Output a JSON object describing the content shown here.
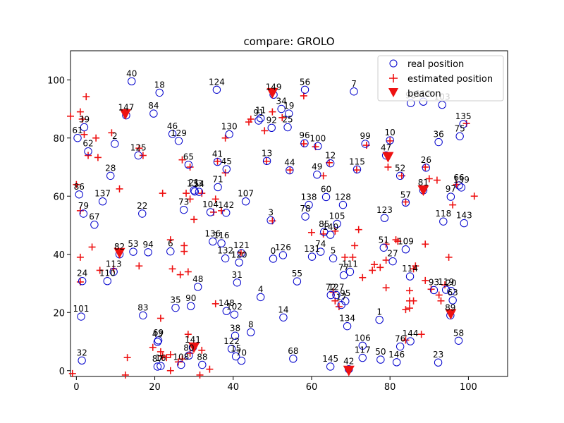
{
  "chart_data": {
    "type": "scatter",
    "title": "compare: GROLO",
    "xlabel": "",
    "ylabel": "",
    "xlim": [
      -1.5,
      110
    ],
    "ylim": [
      -2,
      110
    ],
    "xticks": [
      "0",
      "20",
      "40",
      "60",
      "80",
      "100"
    ],
    "xtick_values": [
      0,
      20,
      40,
      60,
      80,
      100
    ],
    "yticks": [
      "0",
      "20",
      "40",
      "60",
      "80",
      "100"
    ],
    "ytick_values": [
      0,
      20,
      40,
      60,
      80,
      100
    ],
    "grid": false,
    "legend_position": "top-right",
    "legend": [
      "real position",
      "estimated position",
      "beacon"
    ],
    "colors": {
      "real": "#0000cc",
      "estimated": "#ee1111",
      "beacon": "#ee1111"
    },
    "real_positions": [
      {
        "id": "0",
        "x": 50.2,
        "y": 38.5
      },
      {
        "id": "1",
        "x": 77.3,
        "y": 17.5
      },
      {
        "id": "2",
        "x": 9.8,
        "y": 78.0
      },
      {
        "id": "3",
        "x": 49.6,
        "y": 51.7
      },
      {
        "id": "4",
        "x": 47.0,
        "y": 25.3
      },
      {
        "id": "5",
        "x": 65.5,
        "y": 38.6
      },
      {
        "id": "6",
        "x": 24.0,
        "y": 41.0
      },
      {
        "id": "7",
        "x": 70.8,
        "y": 96.0
      },
      {
        "id": "8",
        "x": 44.5,
        "y": 13.2
      },
      {
        "id": "10",
        "x": 80.0,
        "y": 79.2
      },
      {
        "id": "11",
        "x": 47.0,
        "y": 86.8
      },
      {
        "id": "12",
        "x": 64.8,
        "y": 71.3
      },
      {
        "id": "13",
        "x": 48.6,
        "y": 72.1
      },
      {
        "id": "14",
        "x": 52.8,
        "y": 18.3
      },
      {
        "id": "15",
        "x": 40.7,
        "y": 4.9
      },
      {
        "id": "16",
        "x": 21.5,
        "y": 1.6
      },
      {
        "id": "17",
        "x": 67.6,
        "y": 22.6
      },
      {
        "id": "18",
        "x": 21.2,
        "y": 95.6
      },
      {
        "id": "19",
        "x": 54.2,
        "y": 88.4
      },
      {
        "id": "20",
        "x": 95.6,
        "y": 27.4
      },
      {
        "id": "21",
        "x": 30.0,
        "y": 62.0
      },
      {
        "id": "22",
        "x": 16.8,
        "y": 54.0
      },
      {
        "id": "23",
        "x": 92.3,
        "y": 2.8
      },
      {
        "id": "24",
        "x": 1.5,
        "y": 30.8
      },
      {
        "id": "25",
        "x": 53.9,
        "y": 83.7
      },
      {
        "id": "26",
        "x": 89.2,
        "y": 69.8
      },
      {
        "id": "27",
        "x": 80.7,
        "y": 37.6
      },
      {
        "id": "28",
        "x": 8.7,
        "y": 67.0
      },
      {
        "id": "31",
        "x": 41.0,
        "y": 30.3
      },
      {
        "id": "32",
        "x": 1.4,
        "y": 3.5
      },
      {
        "id": "34",
        "x": 52.3,
        "y": 90.0
      },
      {
        "id": "35",
        "x": 25.3,
        "y": 21.6
      },
      {
        "id": "36",
        "x": 92.4,
        "y": 78.6
      },
      {
        "id": "38",
        "x": 40.5,
        "y": 12.0
      },
      {
        "id": "39",
        "x": 2.0,
        "y": 83.7
      },
      {
        "id": "40",
        "x": 14.1,
        "y": 99.5
      },
      {
        "id": "41",
        "x": 36.0,
        "y": 71.8
      },
      {
        "id": "42",
        "x": 69.5,
        "y": 0.5
      },
      {
        "id": "43",
        "x": 20.7,
        "y": 9.9
      },
      {
        "id": "44",
        "x": 54.4,
        "y": 68.9
      },
      {
        "id": "45",
        "x": 38.3,
        "y": 69.3
      },
      {
        "id": "46",
        "x": 24.5,
        "y": 81.4
      },
      {
        "id": "47",
        "x": 79.0,
        "y": 74.0
      },
      {
        "id": "48",
        "x": 31.0,
        "y": 28.8
      },
      {
        "id": "49",
        "x": 61.4,
        "y": 67.4
      },
      {
        "id": "50",
        "x": 77.6,
        "y": 3.8
      },
      {
        "id": "51",
        "x": 78.4,
        "y": 42.3
      },
      {
        "id": "52",
        "x": 82.6,
        "y": 67.0
      },
      {
        "id": "53",
        "x": 14.5,
        "y": 40.9
      },
      {
        "id": "54",
        "x": 31.3,
        "y": 61.5
      },
      {
        "id": "55",
        "x": 56.3,
        "y": 30.7
      },
      {
        "id": "56",
        "x": 58.3,
        "y": 96.6
      },
      {
        "id": "57",
        "x": 84.0,
        "y": 57.8
      },
      {
        "id": "58",
        "x": 97.5,
        "y": 10.3
      },
      {
        "id": "60",
        "x": 63.7,
        "y": 59.7
      },
      {
        "id": "61",
        "x": 0.3,
        "y": 80.0
      },
      {
        "id": "62",
        "x": 3.0,
        "y": 75.4
      },
      {
        "id": "63",
        "x": 96.0,
        "y": 24.2
      },
      {
        "id": "65",
        "x": 28.6,
        "y": 70.8
      },
      {
        "id": "66",
        "x": 97.6,
        "y": 63.7
      },
      {
        "id": "67",
        "x": 4.6,
        "y": 50.2
      },
      {
        "id": "68",
        "x": 55.3,
        "y": 4.1
      },
      {
        "id": "69",
        "x": 20.9,
        "y": 10.4
      },
      {
        "id": "70",
        "x": 42.1,
        "y": 3.4
      },
      {
        "id": "71",
        "x": 36.1,
        "y": 63.1
      },
      {
        "id": "72",
        "x": 64.9,
        "y": 26.0
      },
      {
        "id": "73",
        "x": 27.4,
        "y": 55.3
      },
      {
        "id": "74",
        "x": 62.3,
        "y": 40.9
      },
      {
        "id": "75",
        "x": 97.8,
        "y": 80.6
      },
      {
        "id": "76",
        "x": 82.6,
        "y": 8.3
      },
      {
        "id": "77",
        "x": 68.2,
        "y": 32.8
      },
      {
        "id": "78",
        "x": 58.4,
        "y": 53.0
      },
      {
        "id": "79",
        "x": 1.8,
        "y": 54.0
      },
      {
        "id": "80",
        "x": 28.7,
        "y": 5.2
      },
      {
        "id": "81",
        "x": 88.5,
        "y": 62.0
      },
      {
        "id": "82",
        "x": 11.0,
        "y": 40.0
      },
      {
        "id": "83",
        "x": 17.0,
        "y": 19.0
      },
      {
        "id": "84",
        "x": 19.7,
        "y": 88.4
      },
      {
        "id": "85",
        "x": 63.2,
        "y": 47.7
      },
      {
        "id": "86",
        "x": 0.7,
        "y": 60.6
      },
      {
        "id": "87",
        "x": 20.7,
        "y": 1.4
      },
      {
        "id": "88",
        "x": 32.1,
        "y": 2.0
      },
      {
        "id": "89",
        "x": 95.4,
        "y": 19.0
      },
      {
        "id": "90",
        "x": 29.2,
        "y": 22.2
      },
      {
        "id": "91",
        "x": 46.5,
        "y": 86.0
      },
      {
        "id": "92",
        "x": 49.8,
        "y": 83.5
      },
      {
        "id": "93",
        "x": 91.2,
        "y": 27.7
      },
      {
        "id": "94",
        "x": 18.3,
        "y": 40.7
      },
      {
        "id": "95",
        "x": 68.6,
        "y": 23.9
      },
      {
        "id": "96",
        "x": 58.2,
        "y": 78.2
      },
      {
        "id": "97",
        "x": 95.5,
        "y": 59.8
      },
      {
        "id": "98",
        "x": 85.3,
        "y": 92.0
      },
      {
        "id": "99",
        "x": 73.7,
        "y": 78.0
      },
      {
        "id": "100",
        "x": 61.6,
        "y": 77.2
      },
      {
        "id": "101",
        "x": 1.2,
        "y": 18.6
      },
      {
        "id": "102",
        "x": 40.3,
        "y": 19.3
      },
      {
        "id": "103",
        "x": 93.3,
        "y": 91.4
      },
      {
        "id": "104",
        "x": 34.2,
        "y": 54.5
      },
      {
        "id": "105",
        "x": 66.5,
        "y": 50.5
      },
      {
        "id": "106",
        "x": 73.0,
        "y": 8.6
      },
      {
        "id": "107",
        "x": 43.2,
        "y": 58.2
      },
      {
        "id": "108",
        "x": 26.7,
        "y": 2.0
      },
      {
        "id": "109",
        "x": 84.0,
        "y": 41.7
      },
      {
        "id": "110",
        "x": 7.9,
        "y": 30.8
      },
      {
        "id": "111",
        "x": 69.8,
        "y": 34.0
      },
      {
        "id": "112",
        "x": 88.5,
        "y": 92.5
      },
      {
        "id": "113",
        "x": 9.5,
        "y": 34.0
      },
      {
        "id": "114",
        "x": 85.1,
        "y": 32.4
      },
      {
        "id": "115",
        "x": 71.6,
        "y": 69.2
      },
      {
        "id": "116",
        "x": 37.0,
        "y": 43.8
      },
      {
        "id": "117",
        "x": 73.0,
        "y": 4.4
      },
      {
        "id": "118",
        "x": 93.6,
        "y": 51.3
      },
      {
        "id": "119",
        "x": 94.3,
        "y": 27.8
      },
      {
        "id": "120",
        "x": 41.5,
        "y": 37.2
      },
      {
        "id": "121",
        "x": 42.1,
        "y": 40.4
      },
      {
        "id": "122",
        "x": 39.6,
        "y": 7.5
      },
      {
        "id": "123",
        "x": 78.6,
        "y": 52.5
      },
      {
        "id": "124",
        "x": 35.8,
        "y": 96.6
      },
      {
        "id": "125",
        "x": 15.8,
        "y": 74.0
      },
      {
        "id": "126",
        "x": 52.7,
        "y": 39.7
      },
      {
        "id": "127",
        "x": 66.3,
        "y": 26.0
      },
      {
        "id": "128",
        "x": 68.0,
        "y": 57.0
      },
      {
        "id": "129",
        "x": 26.1,
        "y": 79.0
      },
      {
        "id": "130",
        "x": 39.0,
        "y": 81.3
      },
      {
        "id": "131",
        "x": 60.1,
        "y": 39.2
      },
      {
        "id": "132",
        "x": 38.0,
        "y": 38.6
      },
      {
        "id": "133",
        "x": 30.2,
        "y": 61.6
      },
      {
        "id": "134",
        "x": 69.1,
        "y": 15.3
      },
      {
        "id": "135",
        "x": 98.7,
        "y": 84.8
      },
      {
        "id": "136",
        "x": 34.8,
        "y": 44.4
      },
      {
        "id": "137",
        "x": 6.7,
        "y": 58.2
      },
      {
        "id": "138",
        "x": 59.3,
        "y": 57.0
      },
      {
        "id": "139",
        "x": 98.2,
        "y": 63.0
      },
      {
        "id": "140",
        "x": 64.8,
        "y": 46.7
      },
      {
        "id": "141",
        "x": 29.7,
        "y": 8.0
      },
      {
        "id": "142",
        "x": 38.2,
        "y": 54.3
      },
      {
        "id": "143",
        "x": 98.9,
        "y": 50.7
      },
      {
        "id": "144",
        "x": 85.2,
        "y": 10.1
      },
      {
        "id": "145",
        "x": 64.8,
        "y": 1.4
      },
      {
        "id": "146",
        "x": 81.7,
        "y": 2.9
      },
      {
        "id": "147",
        "x": 12.7,
        "y": 87.8
      },
      {
        "id": "148",
        "x": 38.3,
        "y": 20.5
      },
      {
        "id": "149",
        "x": 50.3,
        "y": 94.9
      }
    ],
    "estimated_positions": [
      [
        -1.5,
        87.5
      ],
      [
        1.0,
        89.0
      ],
      [
        2.5,
        94.2
      ],
      [
        1.5,
        86.5
      ],
      [
        2.0,
        81.2
      ],
      [
        5.0,
        80.0
      ],
      [
        9.0,
        81.8
      ],
      [
        5.5,
        73.3
      ],
      [
        3.0,
        74.0
      ],
      [
        0.0,
        64.0
      ],
      [
        1.0,
        55.0
      ],
      [
        11.0,
        62.5
      ],
      [
        16.0,
        76.5
      ],
      [
        17.0,
        74.0
      ],
      [
        22.0,
        61.0
      ],
      [
        27.0,
        72.5
      ],
      [
        29.0,
        70.0
      ],
      [
        28.0,
        61.0
      ],
      [
        29.0,
        59.0
      ],
      [
        30.0,
        52.0
      ],
      [
        32.0,
        61.0
      ],
      [
        35.5,
        59.0
      ],
      [
        37.0,
        55.0
      ],
      [
        35.0,
        54.5
      ],
      [
        36.0,
        72.0
      ],
      [
        38.0,
        68.0
      ],
      [
        38.0,
        80.0
      ],
      [
        44.0,
        85.5
      ],
      [
        44.5,
        86.5
      ],
      [
        48.0,
        82.5
      ],
      [
        50.0,
        89.0
      ],
      [
        48.5,
        72.0
      ],
      [
        54.5,
        69.0
      ],
      [
        50.0,
        51.5
      ],
      [
        52.5,
        87.0
      ],
      [
        58.0,
        94.5
      ],
      [
        58.0,
        78.0
      ],
      [
        61.0,
        77.0
      ],
      [
        64.5,
        71.5
      ],
      [
        63.0,
        67.0
      ],
      [
        71.5,
        69.0
      ],
      [
        74.0,
        77.5
      ],
      [
        80.0,
        79.0
      ],
      [
        79.5,
        70.0
      ],
      [
        83.0,
        67.0
      ],
      [
        89.0,
        70.0
      ],
      [
        84.0,
        58.0
      ],
      [
        90.0,
        66.0
      ],
      [
        92.0,
        65.5
      ],
      [
        96.0,
        57.0
      ],
      [
        97.0,
        64.0
      ],
      [
        101.5,
        60.0
      ],
      [
        99.5,
        85.0
      ],
      [
        1.0,
        39.0
      ],
      [
        4.0,
        42.5
      ],
      [
        1.0,
        30.5
      ],
      [
        6.0,
        34.5
      ],
      [
        9.5,
        35.0
      ],
      [
        16.0,
        36.0
      ],
      [
        24.0,
        45.0
      ],
      [
        27.5,
        43.0
      ],
      [
        27.5,
        41.0
      ],
      [
        24.5,
        35.0
      ],
      [
        26.5,
        33.0
      ],
      [
        28.5,
        34.0
      ],
      [
        21.5,
        18.0
      ],
      [
        19.5,
        8.0
      ],
      [
        21.5,
        6.5
      ],
      [
        22.0,
        5.0
      ],
      [
        23.0,
        4.5
      ],
      [
        24.0,
        5.5
      ],
      [
        24.0,
        0.0
      ],
      [
        26.0,
        3.0
      ],
      [
        27.0,
        4.0
      ],
      [
        29.0,
        6.0
      ],
      [
        28.5,
        12.5
      ],
      [
        30.0,
        8.5
      ],
      [
        32.0,
        7.0
      ],
      [
        34.0,
        0.5
      ],
      [
        31.5,
        -1.5
      ],
      [
        13.0,
        4.5
      ],
      [
        12.5,
        -1.5
      ],
      [
        -1.0,
        -1.0
      ],
      [
        42.0,
        40.5
      ],
      [
        60.0,
        47.5
      ],
      [
        63.0,
        47.0
      ],
      [
        66.0,
        48.0
      ],
      [
        72.0,
        48.5
      ],
      [
        68.5,
        39.0
      ],
      [
        70.5,
        39.0
      ],
      [
        71.0,
        43.0
      ],
      [
        75.5,
        34.5
      ],
      [
        76.0,
        36.5
      ],
      [
        77.5,
        35.5
      ],
      [
        73.0,
        32.0
      ],
      [
        65.5,
        27.0
      ],
      [
        66.0,
        24.0
      ],
      [
        67.0,
        22.0
      ],
      [
        79.0,
        43.5
      ],
      [
        79.0,
        38.0
      ],
      [
        81.5,
        45.0
      ],
      [
        82.0,
        44.5
      ],
      [
        86.0,
        35.0
      ],
      [
        86.5,
        36.0
      ],
      [
        89.0,
        43.5
      ],
      [
        85.0,
        27.5
      ],
      [
        85.0,
        24.0
      ],
      [
        84.0,
        21.0
      ],
      [
        85.0,
        21.5
      ],
      [
        86.0,
        24.0
      ],
      [
        89.0,
        31.0
      ],
      [
        90.5,
        28.0
      ],
      [
        92.5,
        26.0
      ],
      [
        94.0,
        29.5
      ],
      [
        93.0,
        24.0
      ],
      [
        95.0,
        39.0
      ],
      [
        79.0,
        28.5
      ],
      [
        88.0,
        12.5
      ],
      [
        84.0,
        10.5
      ],
      [
        35.5,
        23.0
      ]
    ],
    "beacons": [
      {
        "x": 12.5,
        "y": 88.2
      },
      {
        "x": 50.0,
        "y": 95.5
      },
      {
        "x": 79.5,
        "y": 73.5
      },
      {
        "x": 88.5,
        "y": 62.0
      },
      {
        "x": 11.0,
        "y": 40.5
      },
      {
        "x": 95.5,
        "y": 19.5
      },
      {
        "x": 30.0,
        "y": 8.0
      },
      {
        "x": 69.5,
        "y": 0.0
      }
    ]
  }
}
